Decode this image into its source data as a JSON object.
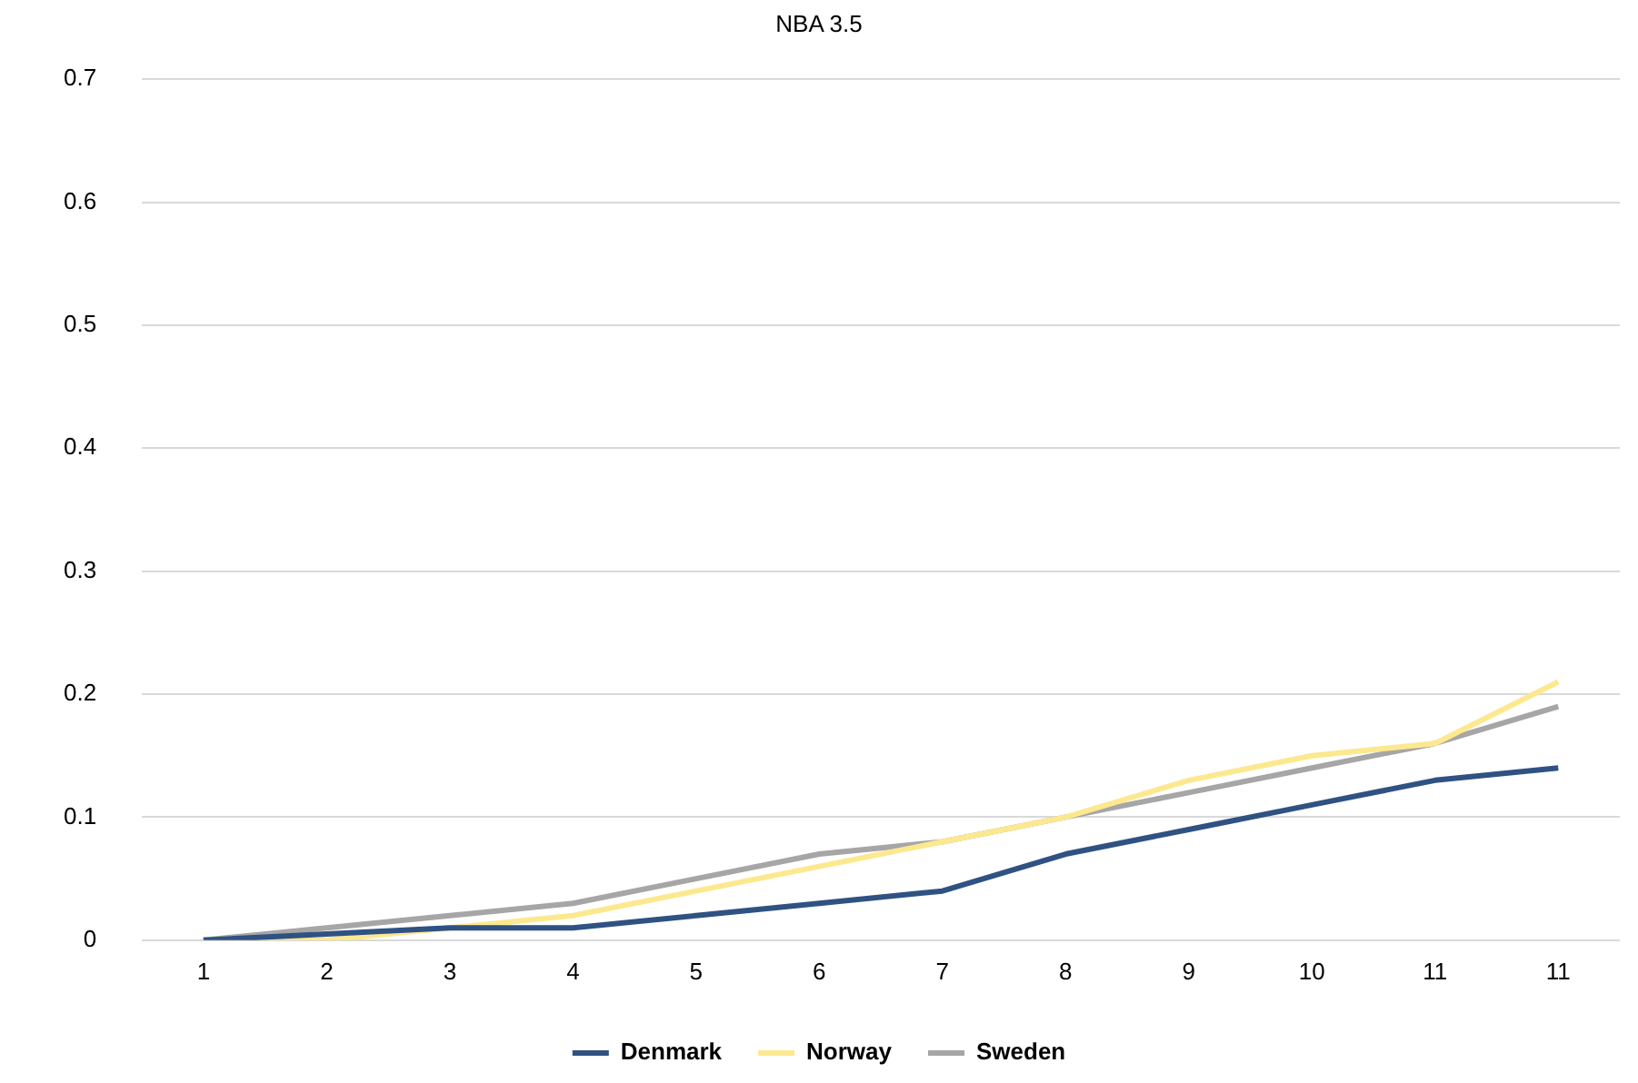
{
  "chart_data": {
    "type": "line",
    "title": "NBA 3.5",
    "categories": [
      "1",
      "2",
      "3",
      "4",
      "5",
      "6",
      "7",
      "8",
      "9",
      "10",
      "11",
      "11"
    ],
    "series": [
      {
        "name": "Denmark",
        "color": "#2f5283",
        "values": [
          0,
          0.005,
          0.01,
          0.01,
          0.02,
          0.03,
          0.04,
          0.07,
          0.09,
          0.11,
          0.13,
          0.14
        ]
      },
      {
        "name": "Norway",
        "color": "#fce98f",
        "values": [
          0,
          0,
          0.01,
          0.02,
          0.04,
          0.06,
          0.08,
          0.1,
          0.13,
          0.15,
          0.16,
          0.21
        ]
      },
      {
        "name": "Sweden",
        "color": "#a6a6a6",
        "values": [
          0,
          0.01,
          0.02,
          0.03,
          0.05,
          0.07,
          0.08,
          0.1,
          0.12,
          0.14,
          0.16,
          0.19
        ]
      }
    ],
    "ylim": [
      0,
      0.7
    ],
    "yticks": [
      0,
      0.1,
      0.2,
      0.3,
      0.4,
      0.5,
      0.6,
      0.7
    ],
    "grid": "y",
    "legend": "bottom",
    "marker": "none",
    "line_style": "solid"
  }
}
